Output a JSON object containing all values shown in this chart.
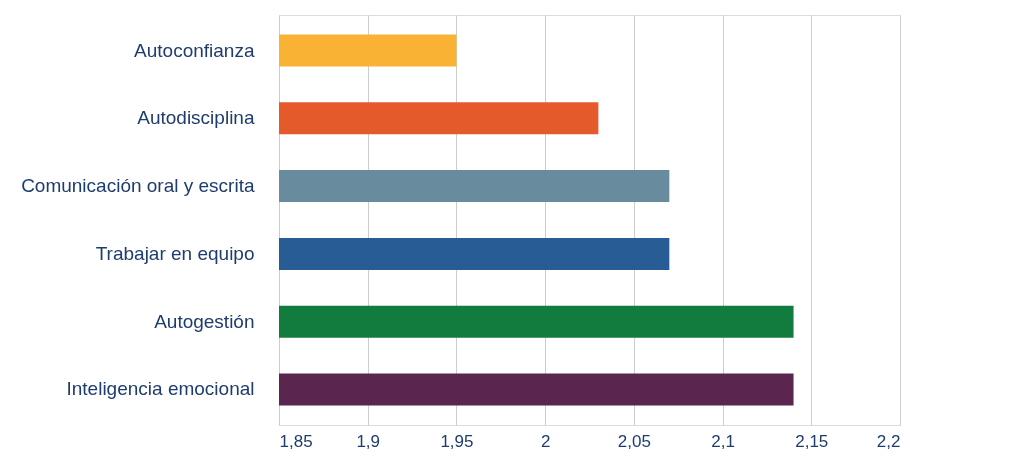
{
  "chart_data": {
    "type": "bar",
    "orientation": "horizontal",
    "categories": [
      "Autoconfianza",
      "Autodisciplina",
      "Comunicación oral y escrita",
      "Trabajar en equipo",
      "Autogestión",
      "Inteligencia emocional"
    ],
    "values": [
      1.95,
      2.03,
      2.07,
      2.07,
      2.14,
      2.14
    ],
    "colors": [
      "#f9b233",
      "#e55a2b",
      "#688b9e",
      "#275d94",
      "#127b3e",
      "#5a2650"
    ],
    "xlim": [
      1.85,
      2.2
    ],
    "xticks": [
      {
        "value": 1.85,
        "label": "1,85"
      },
      {
        "value": 1.9,
        "label": "1,9"
      },
      {
        "value": 1.95,
        "label": "1,95"
      },
      2,
      {
        "value": 2.05,
        "label": "2,05"
      },
      {
        "value": 2.1,
        "label": "2,1"
      },
      {
        "value": 2.15,
        "label": "2,15"
      },
      {
        "value": 2.2,
        "label": "2,2"
      }
    ],
    "grid": "x"
  }
}
